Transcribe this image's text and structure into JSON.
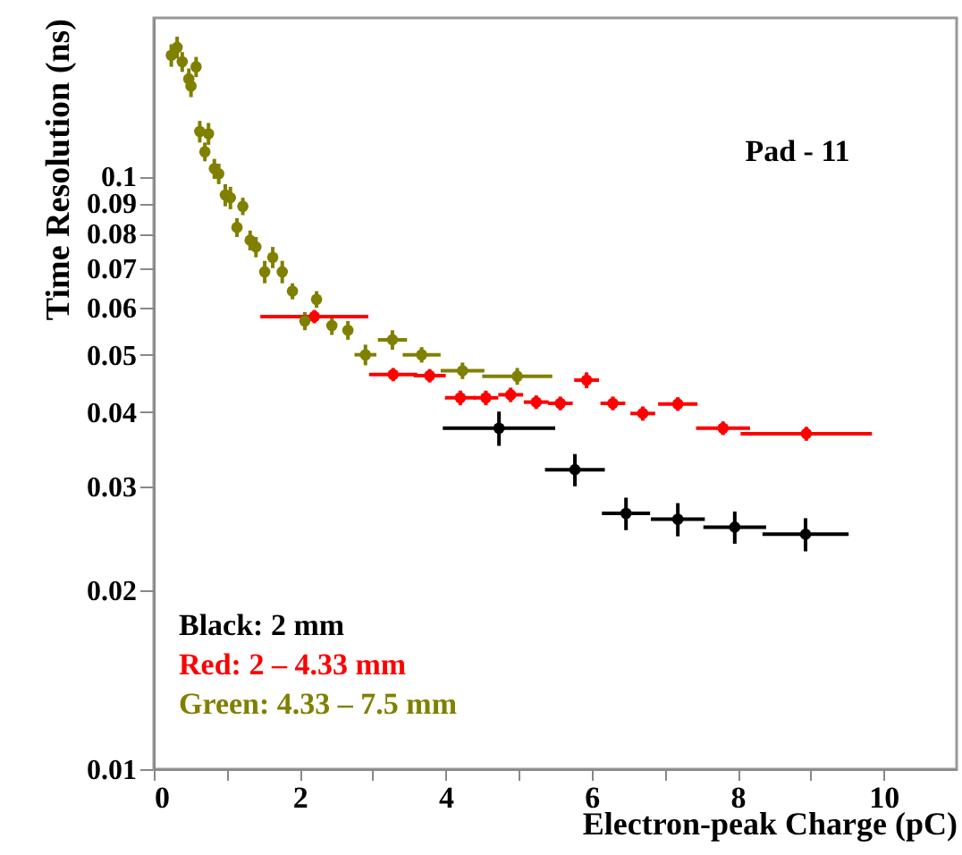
{
  "chart_data": {
    "type": "scatter",
    "xlabel": "Electron-peak Charge (pC)",
    "ylabel": "Time Resolution (ns)",
    "annotations": [
      "Pad - 11"
    ],
    "log": "y",
    "marker": "circle",
    "legend": "bottom left",
    "xlim": [
      0,
      11
    ],
    "ylim": [
      0.01,
      0.185
    ],
    "xticks": [
      0,
      {
        "value": 1,
        "label": null
      },
      2,
      {
        "value": 3,
        "label": null
      },
      4,
      {
        "value": 5,
        "label": null
      },
      6,
      {
        "value": 7,
        "label": null
      },
      8,
      {
        "value": 9,
        "label": null
      },
      10
    ],
    "yticks": [
      0.01,
      0.02,
      0.03,
      0.04,
      0.05,
      0.06,
      0.07,
      0.08,
      0.09,
      0.1
    ],
    "series": [
      {
        "name": "Black: 2 mm",
        "color": "#000000",
        "x": [
          4.73,
          5.77,
          6.47,
          7.18,
          7.96,
          8.93
        ],
        "values": [
          0.0376,
          0.032,
          0.027,
          0.0264,
          0.0256,
          0.0249
        ],
        "errors": [
          0.0025,
          0.002,
          0.0017,
          0.0017,
          0.0016,
          0.0016
        ],
        "xerrors": [
          0.77,
          0.41,
          0.33,
          0.37,
          0.43,
          0.59
        ]
      },
      {
        "name": "Red: 2 – 4.33 mm",
        "color": "#ff0000",
        "x": [
          2.2,
          3.28,
          3.78,
          4.2,
          4.55,
          4.89,
          5.24,
          5.57,
          5.93,
          6.29,
          6.7,
          7.18,
          7.8,
          8.94
        ],
        "values": [
          0.058,
          0.0463,
          0.0461,
          0.0423,
          0.0423,
          0.0428,
          0.0416,
          0.0414,
          0.0453,
          0.0414,
          0.0398,
          0.0413,
          0.0376,
          0.0368
        ],
        "errors": [
          0.0015,
          0.0012,
          0.0012,
          0.0012,
          0.0012,
          0.0012,
          0.0011,
          0.0011,
          0.0014,
          0.0011,
          0.0011,
          0.0011,
          0.001,
          0.001
        ],
        "xerrors": [
          0.74,
          0.33,
          0.22,
          0.21,
          0.17,
          0.17,
          0.17,
          0.17,
          0.17,
          0.17,
          0.17,
          0.27,
          0.37,
          0.9
        ]
      },
      {
        "name": "Green: 4.33 – 7.5 mm",
        "color": "#808000",
        "x": [
          0.24,
          0.32,
          0.39,
          0.48,
          0.51,
          0.58,
          0.63,
          0.7,
          0.75,
          0.83,
          0.89,
          0.98,
          1.05,
          1.14,
          1.22,
          1.32,
          1.4,
          1.52,
          1.63,
          1.76,
          1.9,
          2.07,
          2.23,
          2.44,
          2.66,
          2.9,
          3.27,
          3.67,
          4.23,
          4.98
        ],
        "values": [
          0.16,
          0.165,
          0.156,
          0.146,
          0.142,
          0.153,
          0.119,
          0.11,
          0.118,
          0.103,
          0.101,
          0.093,
          0.092,
          0.082,
          0.089,
          0.078,
          0.076,
          0.069,
          0.073,
          0.069,
          0.064,
          0.057,
          0.062,
          0.056,
          0.055,
          0.05,
          0.053,
          0.05,
          0.047,
          0.046
        ],
        "errors": [
          0.007,
          0.007,
          0.006,
          0.006,
          0.006,
          0.006,
          0.005,
          0.004,
          0.005,
          0.004,
          0.004,
          0.004,
          0.004,
          0.003,
          0.003,
          0.003,
          0.003,
          0.003,
          0.003,
          0.003,
          0.002,
          0.002,
          0.002,
          0.002,
          0.002,
          0.002,
          0.002,
          0.0015,
          0.0015,
          0.0015
        ],
        "xerrors": [
          null,
          null,
          null,
          null,
          null,
          null,
          null,
          null,
          null,
          null,
          null,
          null,
          null,
          null,
          null,
          null,
          null,
          null,
          null,
          null,
          null,
          null,
          null,
          null,
          null,
          0.15,
          0.2,
          0.26,
          0.3,
          0.48
        ]
      }
    ]
  }
}
